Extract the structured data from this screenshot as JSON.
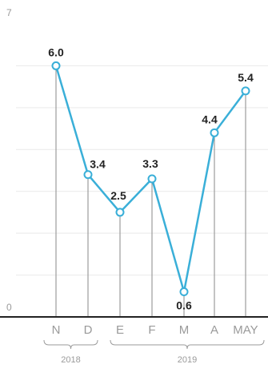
{
  "chart_data": {
    "type": "line",
    "categories": [
      "N",
      "D",
      "E",
      "F",
      "M",
      "A",
      "MAY"
    ],
    "values": [
      6.0,
      3.4,
      2.5,
      3.3,
      0.6,
      4.4,
      5.4
    ],
    "value_labels": [
      "6.0",
      "3.4",
      "2.5",
      "3.3",
      "0.6",
      "4.4",
      "5.4"
    ],
    "ylim": [
      0,
      7
    ],
    "y_ticks": [
      "0",
      "7"
    ],
    "grid": true,
    "groups": [
      {
        "label": "2018",
        "categories": [
          "N",
          "D"
        ]
      },
      {
        "label": "2019",
        "categories": [
          "E",
          "F",
          "M",
          "A",
          "MAY"
        ]
      }
    ],
    "colors": {
      "line": "#3aafd8",
      "marker_fill": "#ffffff",
      "drop_lines": "#8a8a8a",
      "grid": "#e9e9e9",
      "baseline": "#222222",
      "text": "#9a9a9a",
      "data_label": "#222222"
    }
  }
}
